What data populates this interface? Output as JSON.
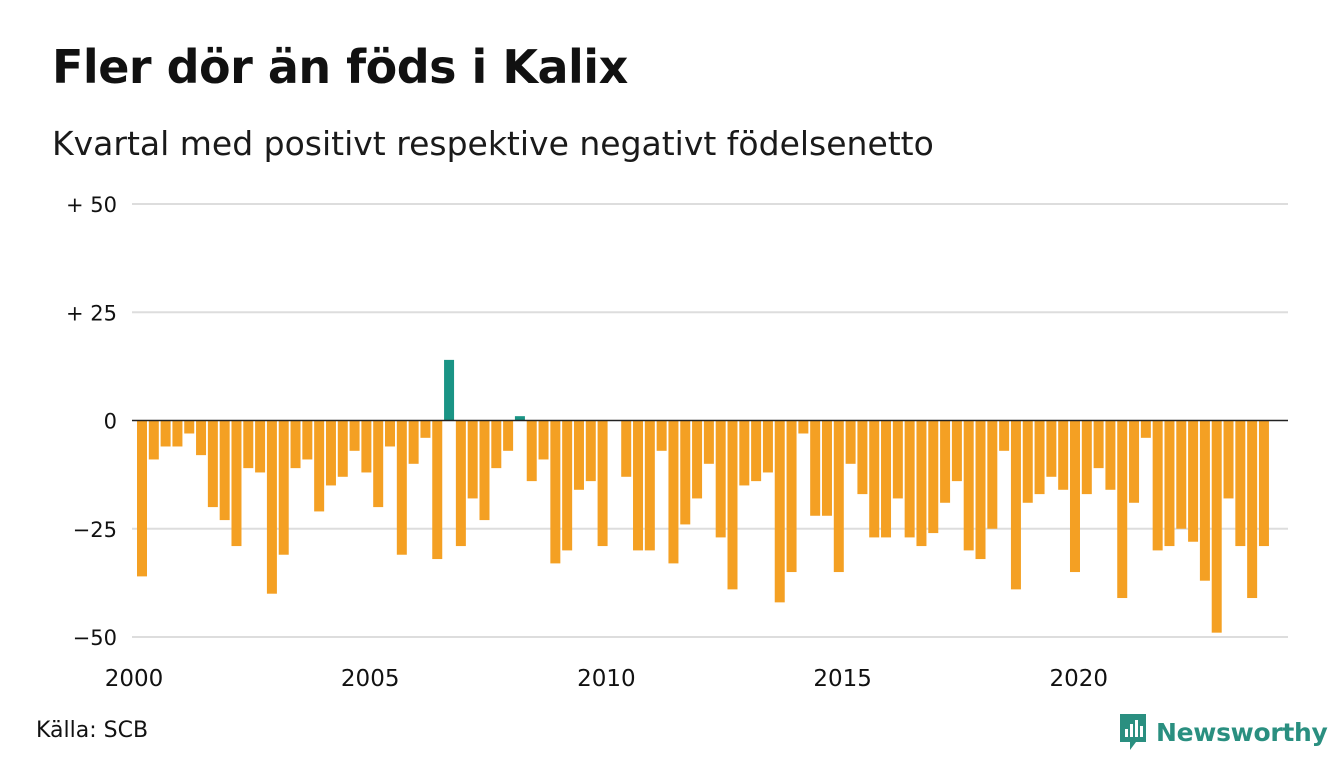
{
  "title": "Fler dör än föds i Kalix",
  "subtitle": "Kvartal med positivt respektive negativt födelsenetto",
  "source": "Källa: SCB",
  "brand": "Newsworthy",
  "colors": {
    "positive": "#1a9485",
    "negative": "#f4a023",
    "grid": "#dddddd",
    "baseline": "#222222",
    "brand": "#2a8f80"
  },
  "chart_data": {
    "type": "bar",
    "xlabel": "",
    "ylabel": "",
    "ylim": [
      -50,
      50
    ],
    "y_ticks": [
      {
        "value": 50,
        "label": "+ 50"
      },
      {
        "value": 25,
        "label": "+ 25"
      },
      {
        "value": 0,
        "label": "0"
      },
      {
        "value": -25,
        "label": "−25"
      },
      {
        "value": -50,
        "label": "−50"
      }
    ],
    "x_ticks": [
      "2000",
      "2005",
      "2010",
      "2015",
      "2020"
    ],
    "x_start_year": 2000,
    "grid": true,
    "values": [
      -36,
      -9,
      -6,
      -6,
      -3,
      -8,
      -20,
      -23,
      -29,
      -11,
      -12,
      -40,
      -31,
      -11,
      -9,
      -21,
      -15,
      -13,
      -7,
      -12,
      -20,
      -6,
      -31,
      -10,
      -4,
      -32,
      14,
      -29,
      -18,
      -23,
      -11,
      -7,
      1,
      -14,
      -9,
      -33,
      -30,
      -16,
      -14,
      -29,
      0,
      -13,
      -30,
      -30,
      -7,
      -33,
      -24,
      -18,
      -10,
      -27,
      -39,
      -15,
      -14,
      -12,
      -42,
      -35,
      -3,
      -22,
      -22,
      -35,
      -10,
      -17,
      -27,
      -27,
      -18,
      -27,
      -29,
      -26,
      -19,
      -14,
      -30,
      -32,
      -25,
      -7,
      -39,
      -19,
      -17,
      -13,
      -16,
      -35,
      -17,
      -11,
      -16,
      -41,
      -19,
      -4,
      -30,
      -29,
      -25,
      -28,
      -37,
      -49,
      -18,
      -29,
      -41,
      -29
    ]
  }
}
